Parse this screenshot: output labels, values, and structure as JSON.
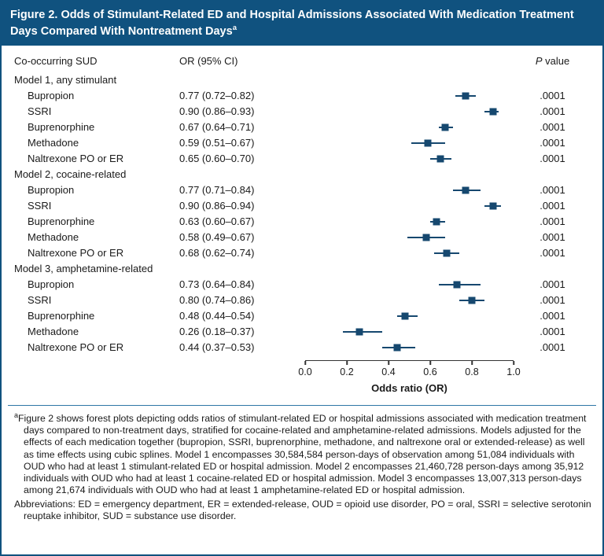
{
  "colors": {
    "header_bg": "#10527F",
    "border": "#10527F",
    "marker": "#16486F",
    "separator": "#2E76A6",
    "axis": "#333333"
  },
  "header": {
    "title": "Figure 2. Odds of Stimulant-Related ED and Hospital Admissions Associated With Medication Treatment Days Compared With Nontreatment Days",
    "superscript": "a"
  },
  "columns": {
    "cooccurring": "Co-occurring SUD",
    "or_ci": "OR (95% CI)",
    "p_italic": "P",
    "p_rest": " value"
  },
  "chart_data": {
    "type": "forest",
    "title": "Odds of Stimulant-Related ED and Hospital Admissions Associated With Medication Treatment Days Compared With Nontreatment Days",
    "xlabel": "Odds ratio (OR)",
    "xlim": [
      0.0,
      1.0
    ],
    "xticks": [
      0.0,
      0.2,
      0.4,
      0.6,
      0.8,
      1.0
    ],
    "xtick_labels": [
      "0.0",
      "0.2",
      "0.4",
      "0.6",
      "0.8",
      "1.0"
    ],
    "legend": "none",
    "groups": [
      {
        "label": "Model 1, any stimulant",
        "rows": [
          {
            "label": "Bupropion",
            "or": 0.77,
            "lo": 0.72,
            "hi": 0.82,
            "ci_text": "0.77 (0.72–0.82)",
            "p": ".0001"
          },
          {
            "label": "SSRI",
            "or": 0.9,
            "lo": 0.86,
            "hi": 0.93,
            "ci_text": "0.90 (0.86–0.93)",
            "p": ".0001"
          },
          {
            "label": "Buprenorphine",
            "or": 0.67,
            "lo": 0.64,
            "hi": 0.71,
            "ci_text": "0.67 (0.64–0.71)",
            "p": ".0001"
          },
          {
            "label": "Methadone",
            "or": 0.59,
            "lo": 0.51,
            "hi": 0.67,
            "ci_text": "0.59 (0.51–0.67)",
            "p": ".0001"
          },
          {
            "label": "Naltrexone PO or ER",
            "or": 0.65,
            "lo": 0.6,
            "hi": 0.7,
            "ci_text": "0.65 (0.60–0.70)",
            "p": ".0001"
          }
        ]
      },
      {
        "label": "Model 2, cocaine-related",
        "rows": [
          {
            "label": "Bupropion",
            "or": 0.77,
            "lo": 0.71,
            "hi": 0.84,
            "ci_text": "0.77 (0.71–0.84)",
            "p": ".0001"
          },
          {
            "label": "SSRI",
            "or": 0.9,
            "lo": 0.86,
            "hi": 0.94,
            "ci_text": "0.90 (0.86–0.94)",
            "p": ".0001"
          },
          {
            "label": "Buprenorphine",
            "or": 0.63,
            "lo": 0.6,
            "hi": 0.67,
            "ci_text": "0.63 (0.60–0.67)",
            "p": ".0001"
          },
          {
            "label": "Methadone",
            "or": 0.58,
            "lo": 0.49,
            "hi": 0.67,
            "ci_text": "0.58 (0.49–0.67)",
            "p": ".0001"
          },
          {
            "label": "Naltrexone PO or ER",
            "or": 0.68,
            "lo": 0.62,
            "hi": 0.74,
            "ci_text": "0.68 (0.62–0.74)",
            "p": ".0001"
          }
        ]
      },
      {
        "label": "Model 3, amphetamine-related",
        "rows": [
          {
            "label": "Bupropion",
            "or": 0.73,
            "lo": 0.64,
            "hi": 0.84,
            "ci_text": "0.73 (0.64–0.84)",
            "p": ".0001"
          },
          {
            "label": "SSRI",
            "or": 0.8,
            "lo": 0.74,
            "hi": 0.86,
            "ci_text": "0.80 (0.74–0.86)",
            "p": ".0001"
          },
          {
            "label": "Buprenorphine",
            "or": 0.48,
            "lo": 0.44,
            "hi": 0.54,
            "ci_text": "0.48 (0.44–0.54)",
            "p": ".0001"
          },
          {
            "label": "Methadone",
            "or": 0.26,
            "lo": 0.18,
            "hi": 0.37,
            "ci_text": "0.26 (0.18–0.37)",
            "p": ".0001"
          },
          {
            "label": "Naltrexone PO or ER",
            "or": 0.44,
            "lo": 0.37,
            "hi": 0.53,
            "ci_text": "0.44 (0.37–0.53)",
            "p": ".0001"
          }
        ]
      }
    ]
  },
  "footnote": {
    "superscript": "a",
    "text": "Figure 2 shows forest plots depicting odds ratios of stimulant-related ED or hospital admissions associated with medication treatment days compared to non-treatment days, stratified for cocaine-related and amphetamine-related admissions. Models adjusted for the effects of each medication together (bupropion, SSRI, buprenorphine, methadone, and naltrexone oral or extended-release) as well as time effects using cubic splines. Model 1 encompasses 30,584,584 person-days of observation among 51,084 individuals with OUD who had at least 1 stimulant-related ED or hospital admission. Model 2 encompasses 21,460,728 person-days among 35,912 individuals with OUD who had at least 1 cocaine-related ED or hospital admission. Model 3 encompasses 13,007,313 person-days among 21,674 individuals with OUD who had at least 1 amphetamine-related ED or hospital admission."
  },
  "abbreviations": "Abbreviations: ED = emergency department, ER = extended-release, OUD = opioid use disorder, PO = oral, SSRI = selective serotonin reuptake inhibitor, SUD = substance use disorder."
}
